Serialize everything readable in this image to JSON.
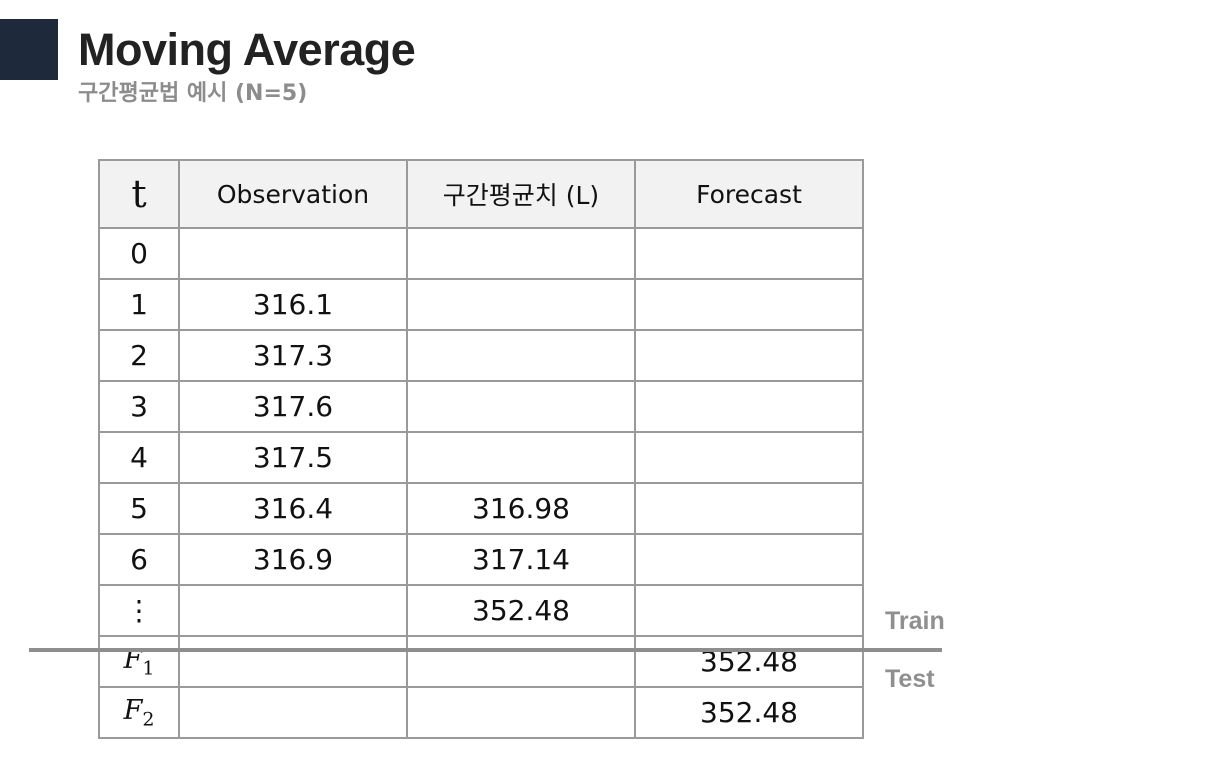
{
  "header": {
    "title": "Moving Average",
    "subtitle": "구간평균법 예시 (N=5)"
  },
  "table": {
    "columns": [
      "t",
      "Observation",
      "구간평균치 (L)",
      "Forecast"
    ],
    "rows": [
      {
        "t": "0",
        "observation": "",
        "level": "",
        "forecast": ""
      },
      {
        "t": "1",
        "observation": "316.1",
        "level": "",
        "forecast": ""
      },
      {
        "t": "2",
        "observation": "317.3",
        "level": "",
        "forecast": ""
      },
      {
        "t": "3",
        "observation": "317.6",
        "level": "",
        "forecast": ""
      },
      {
        "t": "4",
        "observation": "317.5",
        "level": "",
        "forecast": ""
      },
      {
        "t": "5",
        "observation": "316.4",
        "level": "316.98",
        "forecast": ""
      },
      {
        "t": "6",
        "observation": "316.9",
        "level": "317.14",
        "forecast": ""
      },
      {
        "t": "⋮",
        "observation": "",
        "level": "352.48",
        "forecast": ""
      }
    ],
    "forecast_rows": [
      {
        "symbol": "F",
        "index": "1",
        "observation": "",
        "level": "",
        "forecast": "352.48"
      },
      {
        "symbol": "F",
        "index": "2",
        "observation": "",
        "level": "",
        "forecast": "352.48"
      }
    ]
  },
  "labels": {
    "train": "Train",
    "test": "Test"
  },
  "colors": {
    "accent": "#1e2a3c",
    "header_bg": "#f2f2f2",
    "grid": "#9a9a9a",
    "label_gray": "#8f8f8f"
  }
}
